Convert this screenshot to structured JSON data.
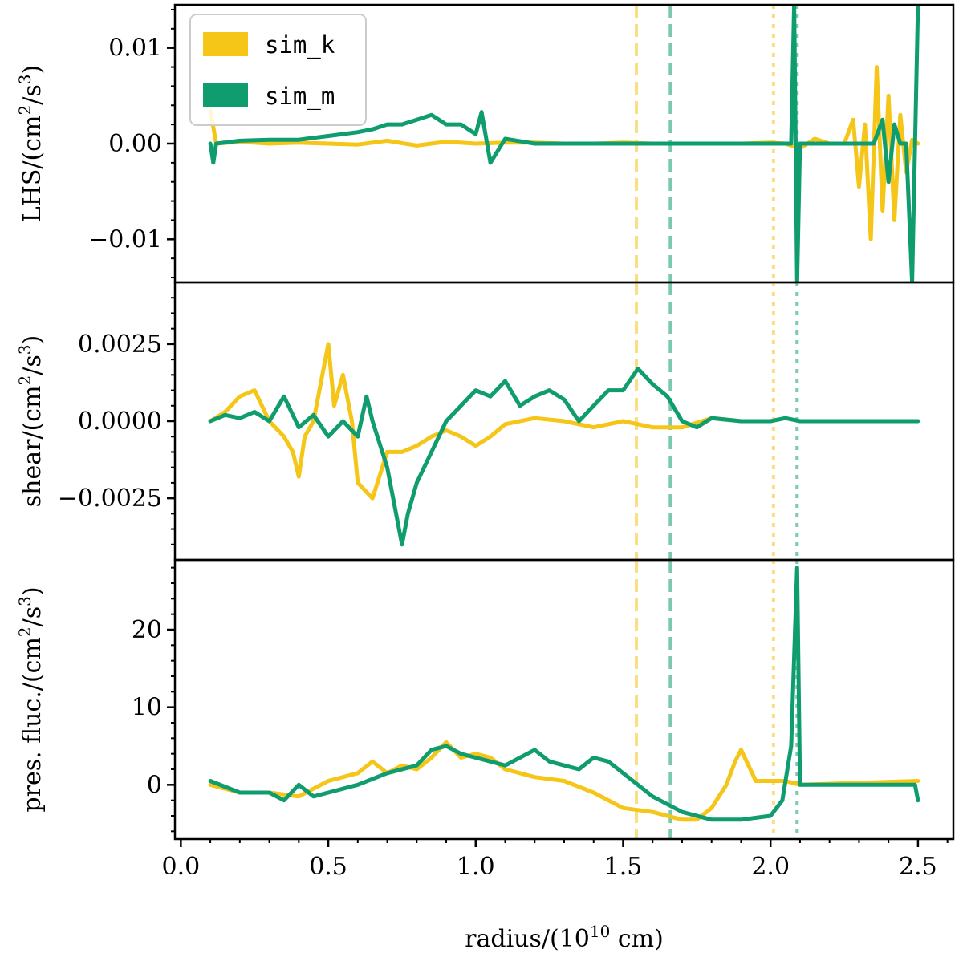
{
  "chart_data": {
    "type": "line",
    "x": [
      0.1,
      0.2,
      0.3,
      0.4,
      0.5,
      0.6,
      0.7,
      0.8,
      0.9,
      1.0,
      1.1,
      1.2,
      1.3,
      1.4,
      1.5,
      1.6,
      1.7,
      1.8,
      1.9,
      2.0,
      2.1,
      2.2,
      2.3,
      2.4,
      2.5
    ],
    "xlabel": "radius/(10",
    "xlabel_sup": "10",
    "xlabel_tail": " cm)",
    "xlim": [
      -0.02,
      2.62
    ],
    "xticks": [
      "0.0",
      "0.5",
      "1.0",
      "1.5",
      "2.0",
      "2.5"
    ],
    "legend": [
      "sim_k",
      "sim_m"
    ],
    "colors": {
      "sim_k": "#f5c518",
      "sim_m": "#0f9d6f"
    },
    "vlines": [
      {
        "series": "sim_k",
        "style": "dashed",
        "x": 1.545
      },
      {
        "series": "sim_m",
        "style": "dashed",
        "x": 1.66
      },
      {
        "series": "sim_k",
        "style": "dotted",
        "x": 2.01
      },
      {
        "series": "sim_m",
        "style": "dotted",
        "x": 2.09
      }
    ],
    "panels": [
      {
        "name": "lhs",
        "ylabel": "LHS/(cm",
        "ylabel_sup": "2",
        "ylabel_mid": "/s",
        "ylabel_sup2": "3",
        "ylabel_tail": ")",
        "ylim": [
          -0.0145,
          0.0145
        ],
        "yticks": [
          -0.01,
          0.0,
          0.01
        ],
        "ytick_labels": [
          "−0.01",
          "0.00",
          "0.01"
        ],
        "series": [
          {
            "name": "sim_k",
            "x": [
              0.1,
              0.12,
              0.2,
              0.3,
              0.4,
              0.5,
              0.6,
              0.7,
              0.8,
              0.9,
              1.0,
              1.1,
              1.2,
              1.3,
              1.4,
              1.5,
              1.6,
              1.7,
              1.8,
              1.9,
              2.0,
              2.05,
              2.1,
              2.15,
              2.2,
              2.25,
              2.28,
              2.3,
              2.32,
              2.34,
              2.36,
              2.38,
              2.4,
              2.42,
              2.44,
              2.46,
              2.48,
              2.5
            ],
            "values": [
              0.0035,
              0.0,
              0.0002,
              0.0,
              0.0001,
              0.0,
              -0.0001,
              0.0003,
              -0.0002,
              0.0002,
              0.0,
              0.0001,
              0.0001,
              0.0,
              0.0,
              0.0001,
              0.0,
              0.0,
              0.0,
              0.0,
              0.0001,
              0.0,
              -0.0005,
              0.0005,
              0.0,
              0.0,
              0.0025,
              -0.0045,
              0.002,
              -0.01,
              0.008,
              -0.007,
              0.005,
              -0.008,
              0.003,
              -0.003,
              0.0004,
              0.0
            ]
          },
          {
            "name": "sim_m",
            "x": [
              0.1,
              0.11,
              0.12,
              0.2,
              0.3,
              0.4,
              0.45,
              0.5,
              0.55,
              0.6,
              0.65,
              0.7,
              0.75,
              0.8,
              0.85,
              0.9,
              0.95,
              1.0,
              1.02,
              1.05,
              1.1,
              1.2,
              1.4,
              1.6,
              1.8,
              2.0,
              2.05,
              2.07,
              2.08,
              2.09,
              2.1,
              2.2,
              2.3,
              2.35,
              2.38,
              2.4,
              2.42,
              2.44,
              2.46,
              2.48,
              2.5
            ],
            "values": [
              0.0,
              -0.002,
              0.0,
              0.0003,
              0.0004,
              0.0004,
              0.0006,
              0.0008,
              0.001,
              0.0012,
              0.0015,
              0.002,
              0.002,
              0.0025,
              0.003,
              0.002,
              0.002,
              0.001,
              0.0033,
              -0.002,
              0.0005,
              0.0,
              0.0,
              0.0,
              0.0,
              0.0,
              0.0,
              0.0,
              0.0145,
              -0.0145,
              0.0,
              0.0,
              0.0,
              0.0,
              0.0025,
              -0.004,
              0.002,
              0.0,
              0.0,
              -0.0145,
              0.0145
            ]
          }
        ]
      },
      {
        "name": "shear",
        "ylabel": "shear/(cm",
        "ylabel_sup": "2",
        "ylabel_mid": "/s",
        "ylabel_sup2": "3",
        "ylabel_tail": ")",
        "ylim": [
          -0.0045,
          0.0045
        ],
        "yticks": [
          -0.0025,
          0.0,
          0.0025
        ],
        "ytick_labels": [
          "−0.0025",
          "0.0000",
          "0.0025"
        ],
        "series": [
          {
            "name": "sim_k",
            "x": [
              0.1,
              0.15,
              0.2,
              0.25,
              0.3,
              0.35,
              0.38,
              0.4,
              0.42,
              0.45,
              0.48,
              0.5,
              0.52,
              0.55,
              0.58,
              0.6,
              0.65,
              0.7,
              0.75,
              0.8,
              0.85,
              0.9,
              0.95,
              1.0,
              1.05,
              1.1,
              1.2,
              1.3,
              1.4,
              1.5,
              1.6,
              1.7,
              1.8,
              1.9,
              2.0
            ],
            "values": [
              0.0,
              0.0003,
              0.0008,
              0.001,
              0.0,
              -0.0005,
              -0.001,
              -0.0018,
              -0.0005,
              0.0,
              0.0015,
              0.0025,
              0.0005,
              0.0015,
              0.0,
              -0.002,
              -0.0025,
              -0.001,
              -0.001,
              -0.0008,
              -0.0005,
              -0.0003,
              -0.0005,
              -0.0008,
              -0.0005,
              -0.0001,
              0.0001,
              0.0,
              -0.0002,
              0.0,
              -0.0002,
              -0.0002,
              0.0001,
              0.0,
              0.0
            ]
          },
          {
            "name": "sim_m",
            "x": [
              0.1,
              0.15,
              0.2,
              0.25,
              0.3,
              0.35,
              0.4,
              0.45,
              0.5,
              0.55,
              0.6,
              0.63,
              0.65,
              0.7,
              0.72,
              0.75,
              0.77,
              0.8,
              0.85,
              0.9,
              0.95,
              1.0,
              1.05,
              1.1,
              1.15,
              1.2,
              1.25,
              1.3,
              1.35,
              1.4,
              1.45,
              1.5,
              1.55,
              1.6,
              1.65,
              1.7,
              1.75,
              1.8,
              1.9,
              2.0,
              2.05,
              2.1,
              2.5
            ],
            "values": [
              0.0,
              0.0002,
              0.0001,
              0.0003,
              0.0,
              0.0008,
              -0.0002,
              0.0002,
              -0.0005,
              0.0,
              -0.0005,
              0.0008,
              0.0,
              -0.0015,
              -0.0025,
              -0.004,
              -0.003,
              -0.002,
              -0.001,
              0.0,
              0.0005,
              0.001,
              0.0008,
              0.0013,
              0.0005,
              0.0008,
              0.001,
              0.0007,
              0.0,
              0.0005,
              0.001,
              0.001,
              0.0017,
              0.0012,
              0.0008,
              0.0,
              -0.0002,
              0.0001,
              0.0,
              0.0,
              0.0001,
              0.0,
              0.0
            ]
          }
        ]
      },
      {
        "name": "pres",
        "ylabel": "pres. fluc./(cm",
        "ylabel_sup": "2",
        "ylabel_mid": "/s",
        "ylabel_sup2": "3",
        "ylabel_tail": ")",
        "ylim": [
          -7,
          29
        ],
        "yticks": [
          0,
          10,
          20
        ],
        "ytick_labels": [
          "0",
          "10",
          "20"
        ],
        "series": [
          {
            "name": "sim_k",
            "x": [
              0.1,
              0.2,
              0.3,
              0.4,
              0.5,
              0.6,
              0.65,
              0.7,
              0.75,
              0.8,
              0.85,
              0.9,
              0.95,
              1.0,
              1.05,
              1.1,
              1.2,
              1.3,
              1.4,
              1.5,
              1.6,
              1.7,
              1.75,
              1.8,
              1.85,
              1.88,
              1.9,
              1.95,
              2.0,
              2.05,
              2.1,
              2.5
            ],
            "values": [
              0.0,
              -1.0,
              -1.0,
              -1.5,
              0.5,
              1.5,
              3.0,
              1.5,
              2.5,
              2.0,
              3.5,
              5.5,
              3.5,
              4.0,
              3.5,
              2.0,
              1.0,
              0.5,
              -1.0,
              -3.0,
              -3.5,
              -4.5,
              -4.5,
              -3.0,
              0.0,
              3.0,
              4.5,
              0.5,
              0.5,
              0.5,
              0.0,
              0.5
            ]
          },
          {
            "name": "sim_m",
            "x": [
              0.1,
              0.2,
              0.3,
              0.35,
              0.4,
              0.45,
              0.5,
              0.6,
              0.7,
              0.8,
              0.85,
              0.9,
              0.95,
              1.0,
              1.05,
              1.1,
              1.15,
              1.2,
              1.25,
              1.3,
              1.35,
              1.4,
              1.45,
              1.5,
              1.6,
              1.7,
              1.8,
              1.9,
              2.0,
              2.04,
              2.07,
              2.09,
              2.1,
              2.12,
              2.2,
              2.4,
              2.49,
              2.5
            ],
            "values": [
              0.5,
              -1.0,
              -1.0,
              -2.0,
              0.0,
              -1.5,
              -1.0,
              0.0,
              1.5,
              2.5,
              4.5,
              5.0,
              4.0,
              3.5,
              3.0,
              2.5,
              3.5,
              4.5,
              3.0,
              2.5,
              2.0,
              3.5,
              3.0,
              1.5,
              -1.5,
              -3.5,
              -4.5,
              -4.5,
              -4.0,
              -2.0,
              5.0,
              28.0,
              0.0,
              0.0,
              0.0,
              0.0,
              0.0,
              -2.0
            ]
          }
        ]
      }
    ]
  }
}
